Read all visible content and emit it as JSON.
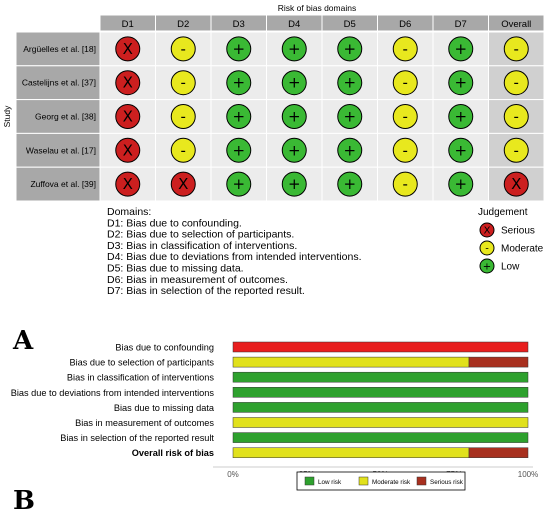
{
  "chart_data": [
    {
      "type": "table",
      "title": "Risk of bias domains",
      "ylabel": "Study",
      "columns": [
        "D1",
        "D2",
        "D3",
        "D4",
        "D5",
        "D6",
        "D7",
        "Overall"
      ],
      "rows": [
        {
          "study": "Argüelles et al. [18]",
          "judgements": [
            "serious",
            "moderate",
            "low",
            "low",
            "low",
            "moderate",
            "low",
            "moderate"
          ]
        },
        {
          "study": "Castelijns et al. [37]",
          "judgements": [
            "serious",
            "moderate",
            "low",
            "low",
            "low",
            "moderate",
            "low",
            "moderate"
          ]
        },
        {
          "study": "Georg et al. [38]",
          "judgements": [
            "serious",
            "moderate",
            "low",
            "low",
            "low",
            "moderate",
            "low",
            "moderate"
          ]
        },
        {
          "study": "Waselau et al. [17]",
          "judgements": [
            "serious",
            "moderate",
            "low",
            "low",
            "low",
            "moderate",
            "low",
            "moderate"
          ]
        },
        {
          "study": "Zuffova et al. [39]",
          "judgements": [
            "serious",
            "serious",
            "low",
            "low",
            "low",
            "moderate",
            "low",
            "serious"
          ]
        }
      ],
      "domains_title": "Domains:",
      "domains": [
        "D1: Bias due to confounding.",
        "D2: Bias due to selection of participants.",
        "D3: Bias in classification of interventions.",
        "D4: Bias due to deviations from intended interventions.",
        "D5: Bias due to missing data.",
        "D6: Bias in measurement of outcomes.",
        "D7: Bias in selection of the reported result."
      ],
      "legend_title": "Judgement",
      "legend": [
        {
          "key": "serious",
          "label": "Serious",
          "symbol": "X"
        },
        {
          "key": "moderate",
          "label": "Moderate",
          "symbol": "-"
        },
        {
          "key": "low",
          "label": "Low",
          "symbol": "+"
        }
      ]
    },
    {
      "type": "bar",
      "orientation": "horizontal",
      "stacked": true,
      "categories": [
        "Bias due to confounding",
        "Bias due to selection of participants",
        "Bias in classification of interventions",
        "Bias due to deviations from intended interventions",
        "Bias due to missing data",
        "Bias in measurement of outcomes",
        "Bias in selection of the reported result",
        "Overall risk of bias"
      ],
      "bold_categories": [
        "Overall risk of bias"
      ],
      "series": [
        {
          "name": "Low risk",
          "key": "low",
          "values": [
            0,
            0,
            100,
            100,
            100,
            0,
            100,
            0
          ]
        },
        {
          "name": "Moderate risk",
          "key": "moderate",
          "values": [
            0,
            80,
            0,
            0,
            0,
            100,
            0,
            80
          ]
        },
        {
          "name": "Serious risk",
          "key": "serious",
          "values": [
            100,
            20,
            0,
            0,
            0,
            0,
            0,
            20
          ]
        }
      ],
      "xlim": [
        0,
        100
      ],
      "xticks": [
        "0%",
        "25%",
        "50%",
        "75%",
        "100%"
      ],
      "legend_position": "bottom"
    }
  ],
  "colors": {
    "low": "#3ab934",
    "moderate": "#e8e81e",
    "serious": "#cc1f1f",
    "header_bg": "#a8a8a8",
    "cell_bg": "#ececec",
    "overall_bg": "#d0d0d0",
    "bar_low": "#2ea12e",
    "bar_moderate": "#e1e11c",
    "bar_serious": "#a8301f",
    "bar_serious_full": "#e81e1e"
  },
  "panels": {
    "a": "A",
    "b": "B"
  }
}
